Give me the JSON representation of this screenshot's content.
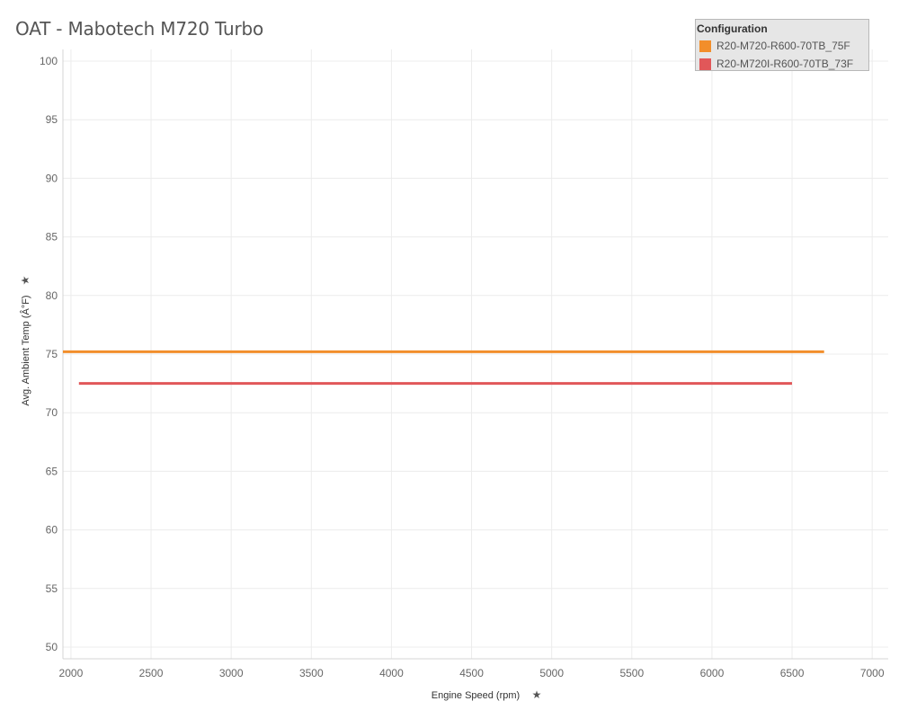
{
  "chart_data": {
    "type": "line",
    "title": "OAT - Mabotech M720 Turbo",
    "xlabel": "Engine Speed (rpm)",
    "ylabel": "Avg. Ambient Temp (Â°F)",
    "xlim": [
      1950,
      7100
    ],
    "ylim": [
      49,
      101
    ],
    "x_ticks": [
      2000,
      2500,
      3000,
      3500,
      4000,
      4500,
      5000,
      5500,
      6000,
      6500,
      7000
    ],
    "y_ticks": [
      50,
      55,
      60,
      65,
      70,
      75,
      80,
      85,
      90,
      95,
      100
    ],
    "grid": true,
    "legend_position": "top-right",
    "legend_title": "Configuration",
    "series": [
      {
        "name": "R20-M720-R600-70TB_75F",
        "color": "#f28e2b",
        "x": [
          1950,
          6700
        ],
        "y": [
          75.2,
          75.2
        ]
      },
      {
        "name": "R20-M720I-R600-70TB_73F",
        "color": "#e15759",
        "x": [
          2050,
          6500
        ],
        "y": [
          72.5,
          72.5
        ]
      }
    ]
  }
}
